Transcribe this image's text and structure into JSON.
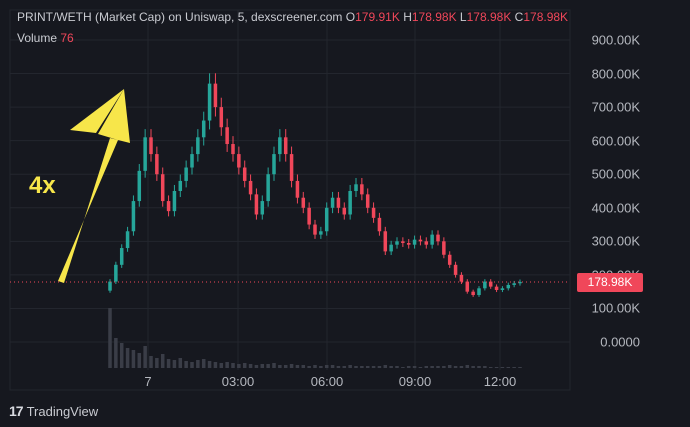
{
  "header": {
    "title": "PRINT/WETH (Market Cap) on Uniswap, 5, dexscreener.com",
    "ohlc": [
      {
        "k": "O",
        "v": "179.91K"
      },
      {
        "k": "H",
        "v": "178.98K"
      },
      {
        "k": "L",
        "v": "178.98K"
      },
      {
        "k": "C",
        "v": "178.98K"
      }
    ],
    "volume_label": "Volume",
    "volume_value": "76"
  },
  "annotation": {
    "text": "4x",
    "color": "#f7e64a"
  },
  "price_tag": "178.98K",
  "footer": {
    "logo_text": "TradingView"
  },
  "colors": {
    "up": "#26a69a",
    "down": "#f0475a",
    "background": "#16181f",
    "grid": "#23262e"
  },
  "chart_data": {
    "type": "candlestick",
    "y_ticks": [
      "900.00K",
      "800.00K",
      "700.00K",
      "600.00K",
      "500.00K",
      "400.00K",
      "300.00K",
      "200.00K",
      "100.00K",
      "0.0000"
    ],
    "ylim": [
      0,
      900000
    ],
    "x_ticks": [
      "7",
      "03:00",
      "06:00",
      "09:00",
      "12:00"
    ],
    "last_price": 178980,
    "series": [
      {
        "name": "Market Cap",
        "values": [
          180000,
          230000,
          280000,
          330000,
          420000,
          510000,
          610000,
          560000,
          500000,
          420000,
          390000,
          450000,
          480000,
          520000,
          560000,
          610000,
          660000,
          770000,
          700000,
          640000,
          590000,
          560000,
          520000,
          480000,
          440000,
          380000,
          420000,
          500000,
          560000,
          610000,
          560000,
          480000,
          430000,
          400000,
          350000,
          320000,
          330000,
          400000,
          430000,
          400000,
          380000,
          450000,
          470000,
          440000,
          400000,
          370000,
          330000,
          270000,
          290000,
          300000,
          295000,
          290000,
          305000,
          300000,
          290000,
          320000,
          300000,
          260000,
          230000,
          200000,
          180000,
          150000,
          140000,
          160000,
          180000,
          165000,
          155000,
          160000,
          170000,
          175000,
          178980
        ]
      }
    ],
    "volume": [
      60,
      30,
      25,
      20,
      18,
      15,
      22,
      12,
      10,
      14,
      9,
      8,
      10,
      7,
      6,
      8,
      9,
      7,
      6,
      5,
      6,
      5,
      4,
      5,
      4,
      3,
      4,
      4,
      5,
      3,
      3,
      4,
      3,
      3,
      2,
      3,
      2,
      3,
      3,
      2,
      2,
      3,
      2,
      2,
      2,
      2,
      2,
      3,
      2,
      2,
      1,
      2,
      2,
      1,
      2,
      2,
      2,
      2,
      3,
      2,
      2,
      3,
      2,
      2,
      2,
      1,
      1,
      1,
      1,
      1,
      1
    ]
  }
}
